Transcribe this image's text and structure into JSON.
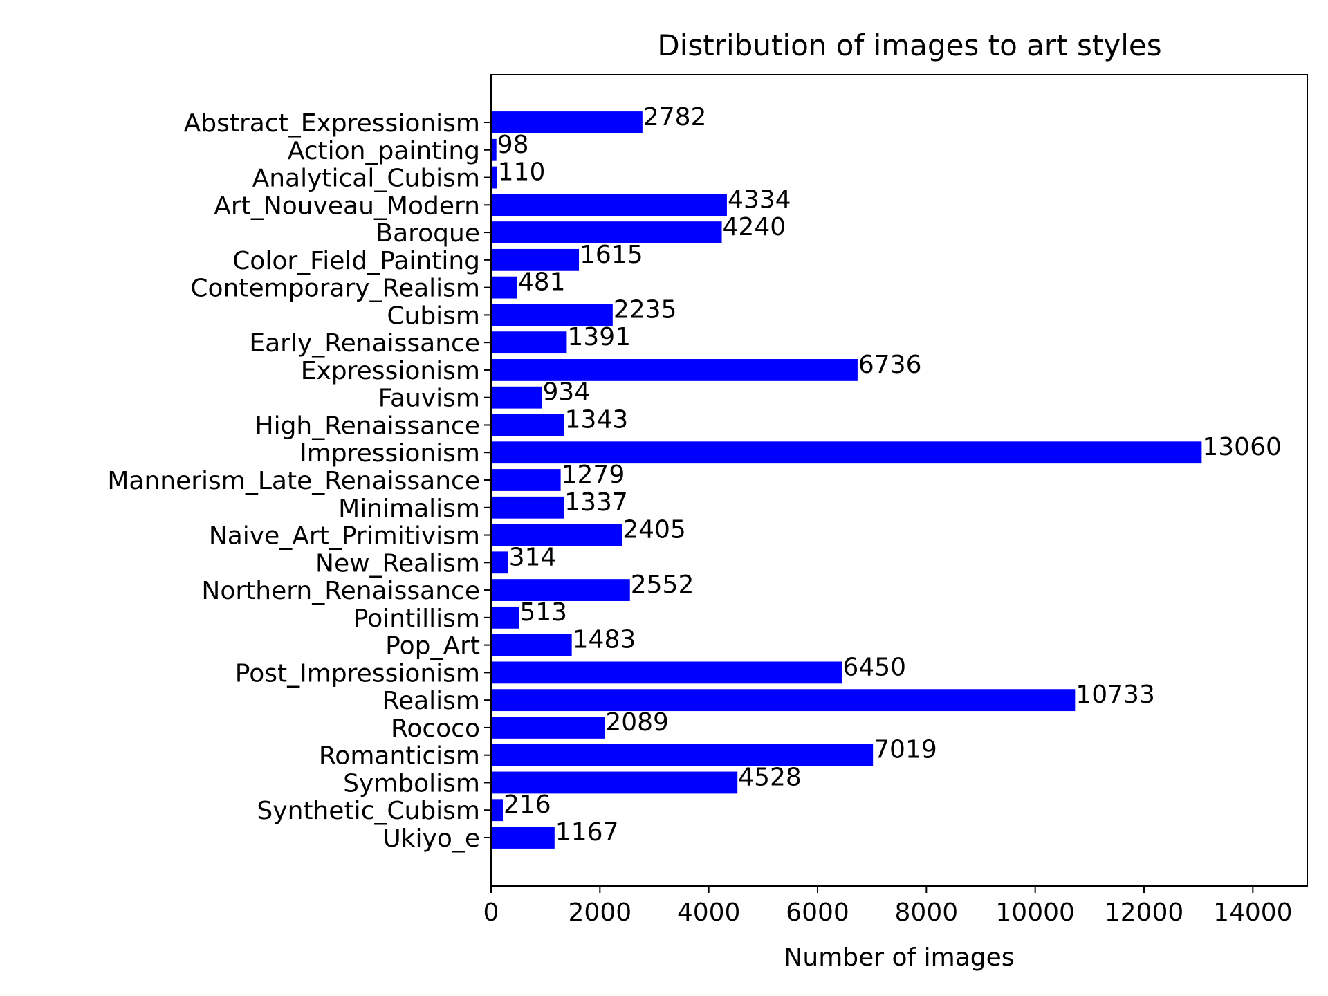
{
  "chart_data": {
    "type": "bar",
    "orientation": "horizontal",
    "title": "Distribution of images to art styles",
    "xlabel": "Number of images",
    "ylabel": "",
    "xlim": [
      0,
      15000
    ],
    "xticks": [
      "0",
      "2000",
      "4000",
      "6000",
      "8000",
      "10000",
      "12000",
      "14000"
    ],
    "grid": false,
    "bar_color": "#0000ff",
    "categories": [
      "Abstract_Expressionism",
      "Action_painting",
      "Analytical_Cubism",
      "Art_Nouveau_Modern",
      "Baroque",
      "Color_Field_Painting",
      "Contemporary_Realism",
      "Cubism",
      "Early_Renaissance",
      "Expressionism",
      "Fauvism",
      "High_Renaissance",
      "Impressionism",
      "Mannerism_Late_Renaissance",
      "Minimalism",
      "Naive_Art_Primitivism",
      "New_Realism",
      "Northern_Renaissance",
      "Pointillism",
      "Pop_Art",
      "Post_Impressionism",
      "Realism",
      "Rococo",
      "Romanticism",
      "Symbolism",
      "Synthetic_Cubism",
      "Ukiyo_e"
    ],
    "values": [
      2782,
      98,
      110,
      4334,
      4240,
      1615,
      481,
      2235,
      1391,
      6736,
      934,
      1343,
      13060,
      1279,
      1337,
      2405,
      314,
      2552,
      513,
      1483,
      6450,
      10733,
      2089,
      7019,
      4528,
      216,
      1167
    ]
  }
}
